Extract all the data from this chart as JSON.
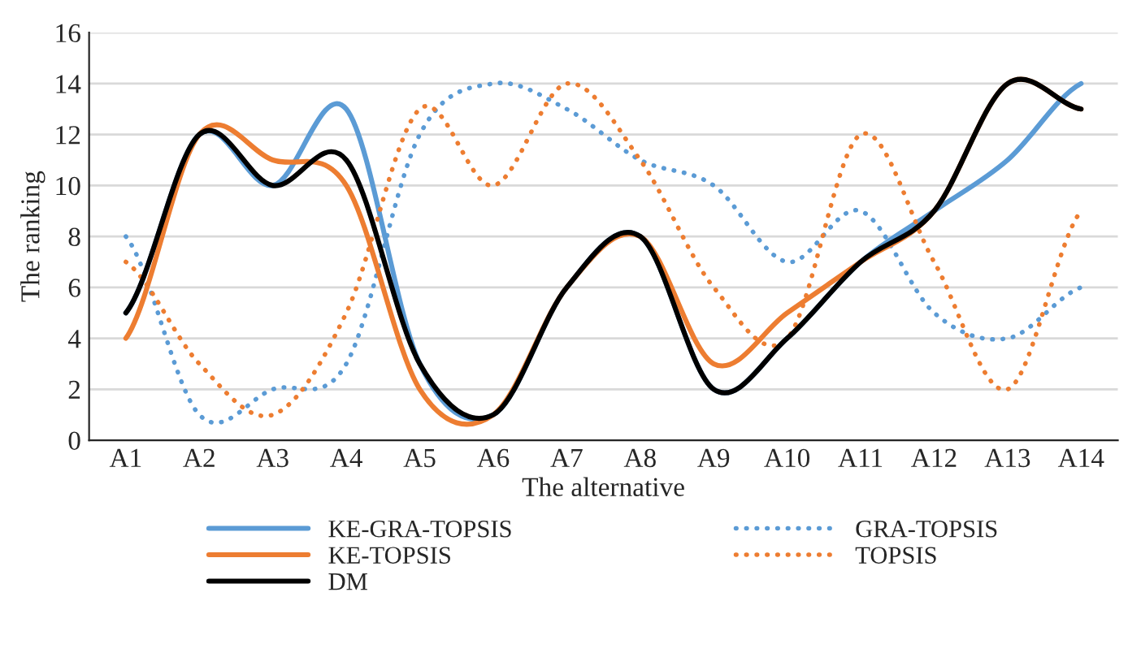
{
  "chart_data": {
    "type": "line",
    "xlabel": "The alternative",
    "ylabel": "The ranking",
    "categories": [
      "A1",
      "A2",
      "A3",
      "A4",
      "A5",
      "A6",
      "A7",
      "A8",
      "A9",
      "A10",
      "A11",
      "A12",
      "A13",
      "A14"
    ],
    "series": [
      {
        "name": "KE-GRA-TOPSIS",
        "color": "#5b9bd5",
        "line_style": "solid",
        "values": [
          5,
          12,
          10,
          13,
          3,
          1,
          6,
          8,
          2,
          4,
          7,
          9,
          11,
          14
        ]
      },
      {
        "name": "GRA-TOPSIS",
        "color": "#5b9bd5",
        "line_style": "dotted",
        "values": [
          8,
          1,
          2,
          3,
          12,
          14,
          13,
          11,
          10,
          7,
          9,
          5,
          4,
          6
        ]
      },
      {
        "name": "KE-TOPSIS",
        "color": "#ed7d31",
        "line_style": "solid",
        "values": [
          4,
          12,
          11,
          10,
          2,
          1,
          6,
          8,
          3,
          5,
          7,
          9,
          14,
          13
        ]
      },
      {
        "name": "TOPSIS",
        "color": "#ed7d31",
        "line_style": "dotted",
        "values": [
          7,
          3,
          1,
          5,
          13,
          10,
          14,
          11,
          6,
          4,
          12,
          7,
          2,
          9
        ]
      },
      {
        "name": "DM",
        "color": "#000000",
        "line_style": "solid",
        "values": [
          5,
          12,
          10,
          11,
          3,
          1,
          6,
          8,
          2,
          4,
          7,
          9,
          14,
          13
        ]
      }
    ],
    "ylim": [
      0,
      16
    ],
    "yticks": [
      0,
      2,
      4,
      6,
      8,
      10,
      12,
      14,
      16
    ],
    "grid": "y",
    "legend": "bottom",
    "marker": "none"
  }
}
